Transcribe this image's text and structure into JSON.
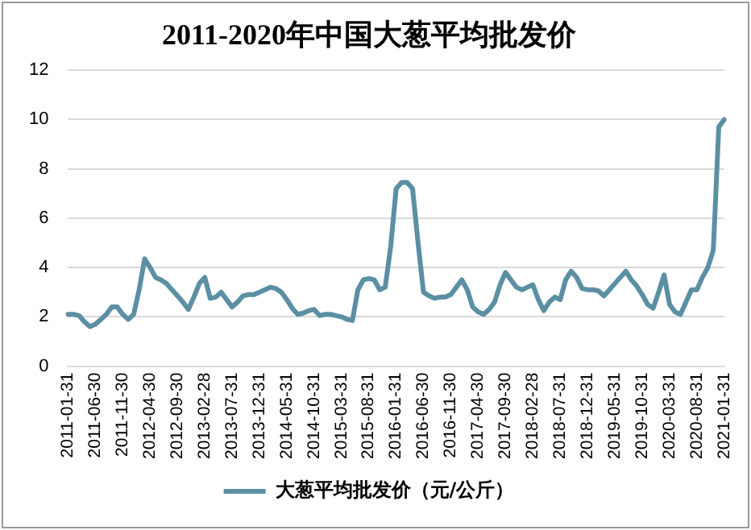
{
  "chart_data": {
    "type": "line",
    "title": "2011-2020年中国大葱平均批发价",
    "categories": [
      "2011-01-31",
      null,
      null,
      null,
      null,
      "2011-06-30",
      null,
      null,
      null,
      null,
      "2011-11-30",
      null,
      null,
      null,
      null,
      "2012-04-30",
      null,
      null,
      null,
      null,
      "2012-09-30",
      null,
      null,
      null,
      null,
      "2013-02-28",
      null,
      null,
      null,
      null,
      "2013-07-31",
      null,
      null,
      null,
      null,
      "2013-12-31",
      null,
      null,
      null,
      null,
      "2014-05-31",
      null,
      null,
      null,
      null,
      "2014-10-31",
      null,
      null,
      null,
      null,
      "2015-03-31",
      null,
      null,
      null,
      null,
      "2015-08-31",
      null,
      null,
      null,
      null,
      "2016-01-31",
      null,
      null,
      null,
      null,
      "2016-06-30",
      null,
      null,
      null,
      null,
      "2016-11-30",
      null,
      null,
      null,
      null,
      "2017-04-30",
      null,
      null,
      null,
      null,
      "2017-09-30",
      null,
      null,
      null,
      null,
      "2018-02-28",
      null,
      null,
      null,
      null,
      "2018-07-31",
      null,
      null,
      null,
      null,
      "2018-12-31",
      null,
      null,
      null,
      null,
      "2019-05-31",
      null,
      null,
      null,
      null,
      "2019-10-31",
      null,
      null,
      null,
      null,
      "2020-03-31",
      null,
      null,
      null,
      null,
      "2020-08-31",
      null,
      null,
      null,
      null,
      "2021-01-31"
    ],
    "series": [
      {
        "name": "大葱平均批发价（元/公斤）",
        "color": "#5b8fa3",
        "values": [
          2.1,
          2.1,
          2.05,
          1.8,
          1.6,
          1.7,
          1.9,
          2.1,
          2.4,
          2.4,
          2.1,
          1.9,
          2.1,
          3.1,
          4.35,
          4.0,
          3.6,
          3.5,
          3.35,
          3.1,
          2.85,
          2.6,
          2.3,
          2.8,
          3.35,
          3.6,
          2.75,
          2.8,
          3.0,
          2.7,
          2.4,
          2.6,
          2.85,
          2.9,
          2.9,
          3.0,
          3.1,
          3.2,
          3.15,
          3.0,
          2.7,
          2.35,
          2.1,
          2.15,
          2.25,
          2.3,
          2.05,
          2.1,
          2.1,
          2.05,
          2.0,
          1.9,
          1.85,
          3.1,
          3.5,
          3.55,
          3.5,
          3.1,
          3.2,
          4.85,
          7.2,
          7.45,
          7.45,
          7.2,
          5.0,
          3.0,
          2.85,
          2.75,
          2.8,
          2.8,
          2.9,
          3.2,
          3.5,
          3.1,
          2.4,
          2.2,
          2.1,
          2.3,
          2.6,
          3.3,
          3.8,
          3.5,
          3.2,
          3.1,
          3.2,
          3.3,
          2.7,
          2.25,
          2.6,
          2.8,
          2.7,
          3.5,
          3.85,
          3.6,
          3.15,
          3.1,
          3.1,
          3.05,
          2.85,
          3.1,
          3.35,
          3.6,
          3.85,
          3.5,
          3.25,
          2.9,
          2.5,
          2.35,
          3.0,
          3.7,
          2.5,
          2.2,
          2.1,
          2.6,
          3.1,
          3.1,
          3.6,
          4.0,
          4.7,
          9.7,
          10.0
        ]
      }
    ],
    "ylim": [
      0,
      12
    ],
    "yticks": [
      0,
      2,
      4,
      6,
      8,
      10,
      12
    ],
    "grid": "y",
    "legend": "bottom",
    "marker": "none",
    "line_style": "solid"
  }
}
